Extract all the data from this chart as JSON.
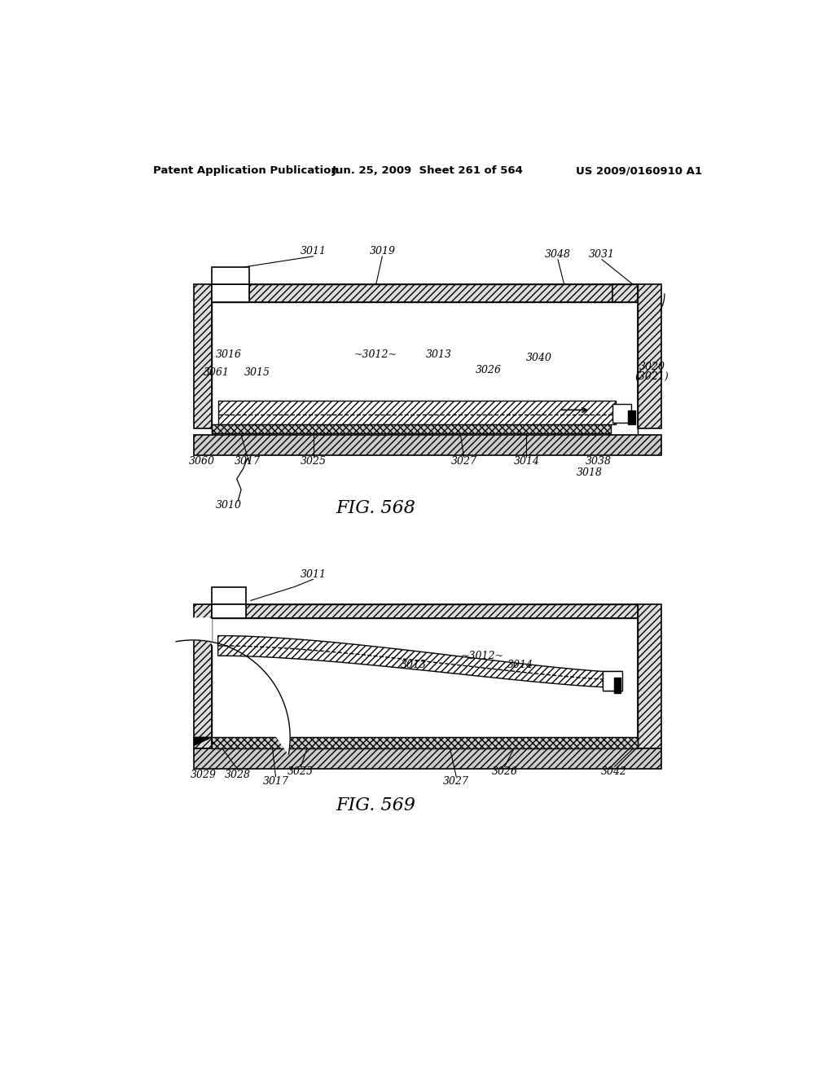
{
  "bg_color": "#ffffff",
  "header_left": "Patent Application Publication",
  "header_mid": "Jun. 25, 2009  Sheet 261 of 564",
  "header_right": "US 2009/0160910 A1",
  "fig1_caption": "FIG. 568",
  "fig2_caption": "FIG. 569"
}
